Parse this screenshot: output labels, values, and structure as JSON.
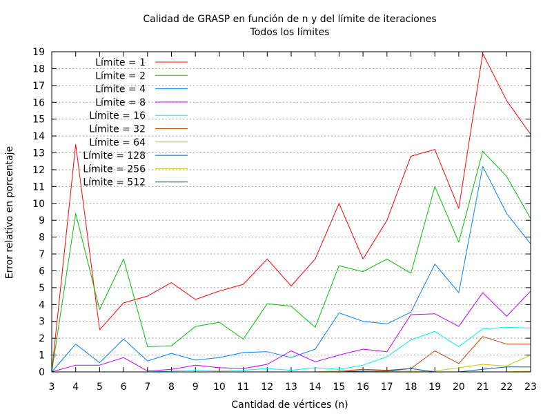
{
  "chart_data": {
    "type": "line",
    "title": "Calidad de GRASP en función de n y del límite de iteraciones",
    "subtitle": "Todos los límites",
    "xlabel": "Cantidad de vértices (n)",
    "ylabel": "Error relativo en porcentaje",
    "xlim": [
      3,
      23
    ],
    "ylim": [
      0,
      19
    ],
    "x": [
      3,
      4,
      5,
      6,
      7,
      8,
      9,
      10,
      11,
      12,
      13,
      14,
      15,
      16,
      17,
      18,
      19,
      20,
      21,
      22,
      23
    ],
    "grid": true,
    "legend_position": "top-left",
    "series": [
      {
        "name": "Límite = 1",
        "color": "#ff0000",
        "values": [
          0,
          13.5,
          2.5,
          4.1,
          4.5,
          5.3,
          4.3,
          4.8,
          5.2,
          6.7,
          5.1,
          6.7,
          10.0,
          6.7,
          9.0,
          12.8,
          13.2,
          9.7,
          18.9,
          16.1,
          14.1
        ]
      },
      {
        "name": "Límite = 2",
        "color": "#00c000",
        "values": [
          0,
          9.4,
          3.7,
          6.7,
          1.5,
          1.55,
          2.7,
          2.95,
          1.95,
          4.05,
          3.9,
          2.65,
          6.3,
          5.95,
          6.7,
          5.85,
          11.0,
          7.7,
          13.1,
          11.6,
          9.1
        ]
      },
      {
        "name": "Límite = 4",
        "color": "#0080ff",
        "values": [
          0,
          1.65,
          0.55,
          1.95,
          0.65,
          1.1,
          0.7,
          0.85,
          1.15,
          1.2,
          0.85,
          1.35,
          3.5,
          3.0,
          2.85,
          3.55,
          6.4,
          4.7,
          12.2,
          9.4,
          7.6
        ]
      },
      {
        "name": "Límite = 8",
        "color": "#c000ff",
        "values": [
          0,
          0.4,
          0.4,
          0.85,
          0.05,
          0.15,
          0.4,
          0.25,
          0.2,
          0.45,
          1.25,
          0.6,
          1.0,
          1.35,
          1.2,
          3.4,
          3.45,
          2.7,
          4.7,
          3.3,
          4.8
        ]
      },
      {
        "name": "Límite = 16",
        "color": "#00eeee",
        "values": [
          0,
          0,
          0,
          0,
          0,
          0.05,
          0.1,
          0.05,
          0.1,
          0.2,
          0.1,
          0.25,
          0.15,
          0.4,
          0.9,
          1.9,
          2.4,
          1.5,
          2.55,
          2.65,
          2.6
        ]
      },
      {
        "name": "Límite = 32",
        "color": "#c04000",
        "values": [
          0,
          0,
          0,
          0,
          0,
          0,
          0,
          0,
          0,
          0,
          0,
          0,
          0.05,
          0.15,
          0.1,
          0.2,
          1.25,
          0.5,
          2.1,
          1.65,
          1.65
        ]
      },
      {
        "name": "Límite = 64",
        "color": "#c8c800",
        "values": [
          0,
          0,
          0,
          0,
          0,
          0,
          0,
          0,
          0,
          0,
          0,
          0,
          0.05,
          0.05,
          0.05,
          0.05,
          0.05,
          0.25,
          0.45,
          0.35,
          1.0
        ]
      },
      {
        "name": "Límite = 128",
        "color": "#0060ad",
        "values": [
          0,
          0,
          0,
          0,
          0,
          0,
          0,
          0,
          0,
          0,
          0,
          0,
          0,
          0.05,
          0.05,
          0.2,
          0,
          0,
          0.15,
          0.3,
          0.3
        ]
      },
      {
        "name": "Límite = 256",
        "color": "#e5c000",
        "values": [
          0,
          0,
          0,
          0,
          0,
          0,
          0,
          0,
          0,
          0,
          0,
          0,
          0,
          0,
          0,
          0,
          0,
          0,
          0,
          0,
          0.05
        ]
      },
      {
        "name": "Límite = 512",
        "color": "#007040",
        "values": [
          0,
          0,
          0,
          0,
          0,
          0,
          0,
          0,
          0,
          0,
          0,
          0,
          0,
          0,
          0,
          0,
          0,
          0,
          0,
          0,
          0
        ]
      }
    ]
  }
}
